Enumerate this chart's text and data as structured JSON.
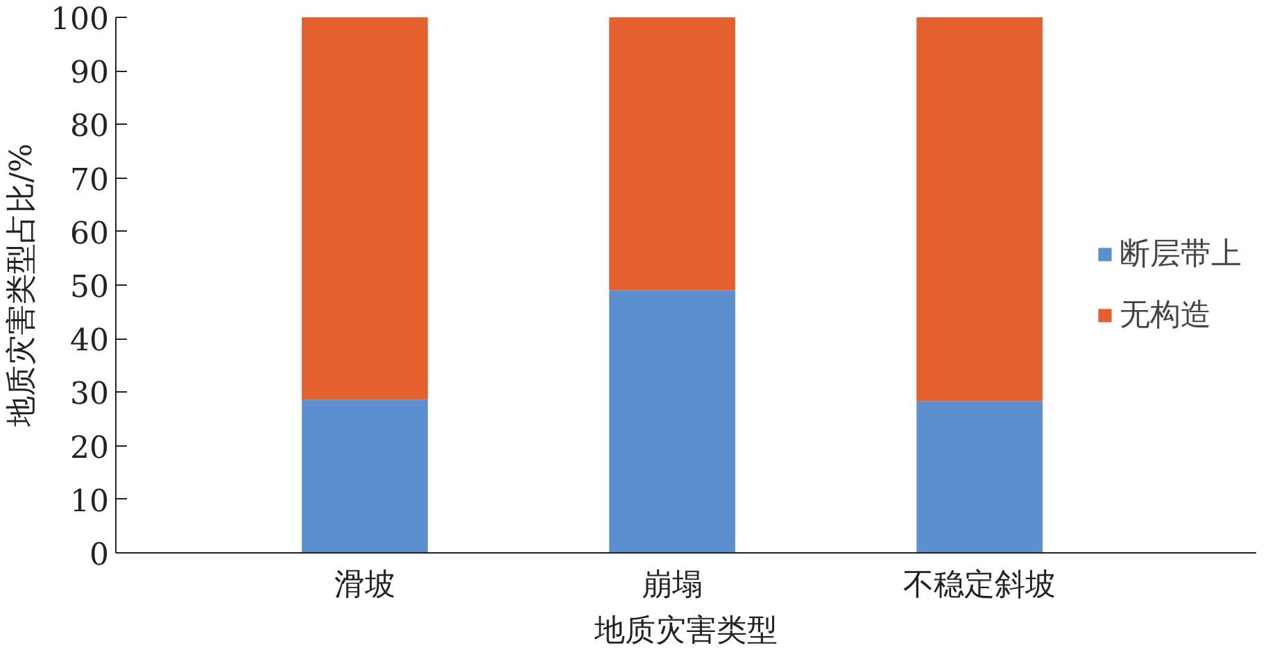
{
  "chart_data": {
    "type": "bar",
    "stacked": true,
    "xlabel": "地质灾害类型",
    "ylabel": "地质灾害类型占比/%",
    "categories": [
      "滑坡",
      "崩塌",
      "不稳定斜坡"
    ],
    "series": [
      {
        "name": "断层带上",
        "color": "#5b8fd0",
        "values": [
          28.6,
          49,
          28.3
        ]
      },
      {
        "name": "无构造",
        "color": "#e4612f",
        "values": [
          71.4,
          51,
          71.7
        ]
      }
    ],
    "ylim": [
      0,
      100
    ],
    "yticks": [
      0,
      10,
      20,
      30,
      40,
      50,
      60,
      70,
      80,
      90,
      100
    ],
    "grid": false,
    "legend": "right"
  }
}
